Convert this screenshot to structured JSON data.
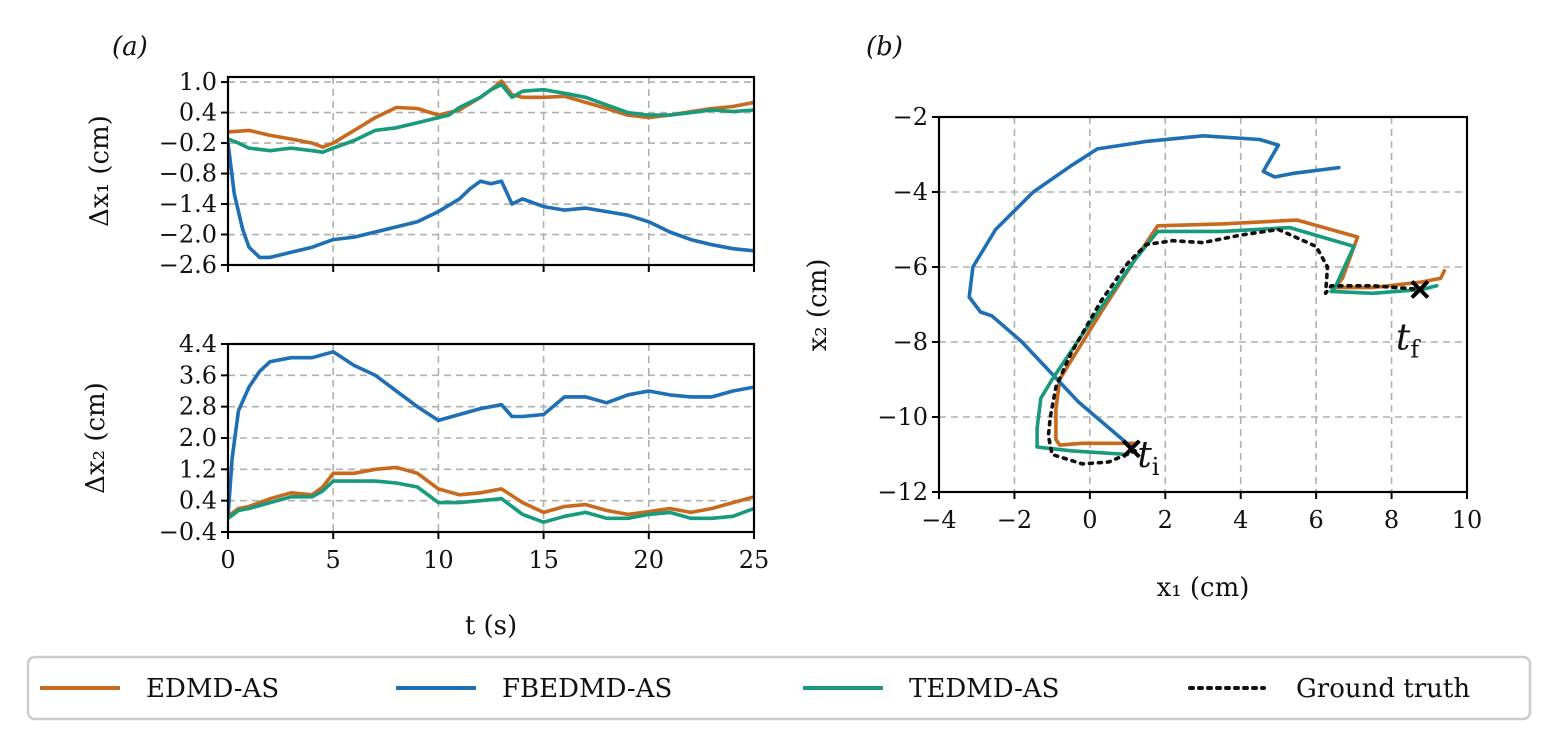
{
  "chart_data": [
    {
      "type": "line",
      "panel_label": "(a)",
      "ylabel": "Δx₁ (cm)",
      "xlabel": "",
      "xlim": [
        0,
        25
      ],
      "ylim": [
        -2.6,
        1.1
      ],
      "yticks": [
        "1.0",
        "0.4",
        "−0.2",
        "−0.8",
        "−1.4",
        "−2.0",
        "−2.6"
      ],
      "ytick_values": [
        1.0,
        0.4,
        -0.2,
        -0.8,
        -1.4,
        -2.0,
        -2.6
      ],
      "xticks": [
        "0",
        "5",
        "10",
        "15",
        "20",
        "25"
      ],
      "xtick_values": [
        0,
        5,
        10,
        15,
        20,
        25
      ],
      "grid": true,
      "series": [
        {
          "name": "EDMD-AS",
          "color": "#c86a1e",
          "style": "solid",
          "x": [
            0,
            1,
            2,
            3,
            4,
            4.5,
            5,
            6,
            7,
            8,
            9,
            10,
            11,
            12,
            12.5,
            13,
            13.5,
            14,
            15,
            16,
            17,
            18,
            19,
            20,
            21,
            22,
            23,
            24,
            25
          ],
          "y": [
            0.02,
            0.05,
            -0.05,
            -0.12,
            -0.2,
            -0.28,
            -0.2,
            0.05,
            0.3,
            0.5,
            0.48,
            0.35,
            0.45,
            0.7,
            0.85,
            1.02,
            0.75,
            0.7,
            0.7,
            0.72,
            0.6,
            0.48,
            0.35,
            0.3,
            0.35,
            0.42,
            0.48,
            0.52,
            0.6
          ]
        },
        {
          "name": "FBEDMD-AS",
          "color": "#1f6fb4",
          "style": "solid",
          "x": [
            0,
            0.3,
            0.7,
            1,
            1.5,
            2,
            3,
            4,
            5,
            6,
            7,
            8,
            9,
            10,
            11,
            11.5,
            12,
            12.5,
            13,
            13.5,
            14,
            15,
            16,
            17,
            18,
            19,
            20,
            21,
            22,
            23,
            24,
            25
          ],
          "y": [
            -0.2,
            -1.2,
            -1.9,
            -2.25,
            -2.45,
            -2.45,
            -2.35,
            -2.25,
            -2.1,
            -2.05,
            -1.95,
            -1.85,
            -1.75,
            -1.55,
            -1.3,
            -1.1,
            -0.95,
            -1.0,
            -0.95,
            -1.4,
            -1.3,
            -1.45,
            -1.52,
            -1.48,
            -1.55,
            -1.62,
            -1.75,
            -1.95,
            -2.1,
            -2.2,
            -2.28,
            -2.32
          ]
        },
        {
          "name": "TEDMD-AS",
          "color": "#189a7d",
          "style": "solid",
          "x": [
            0,
            0.5,
            1,
            2,
            3,
            4,
            4.5,
            5,
            6,
            7,
            8,
            9,
            10,
            10.5,
            11,
            12,
            12.5,
            13,
            13.5,
            14,
            15,
            16,
            17,
            18,
            19,
            20,
            21,
            22,
            23,
            24,
            25
          ],
          "y": [
            -0.12,
            -0.2,
            -0.3,
            -0.35,
            -0.3,
            -0.35,
            -0.38,
            -0.3,
            -0.15,
            0.05,
            0.1,
            0.2,
            0.3,
            0.35,
            0.5,
            0.7,
            0.85,
            0.95,
            0.7,
            0.82,
            0.85,
            0.78,
            0.7,
            0.55,
            0.4,
            0.35,
            0.35,
            0.4,
            0.45,
            0.42,
            0.45
          ]
        }
      ]
    },
    {
      "type": "line",
      "panel_label": "",
      "ylabel": "Δx₂ (cm)",
      "xlabel": "t (s)",
      "xlim": [
        0,
        25
      ],
      "ylim": [
        -0.4,
        4.4
      ],
      "yticks": [
        "4.4",
        "3.6",
        "2.8",
        "2.0",
        "1.2",
        "0.4",
        "−0.4"
      ],
      "ytick_values": [
        4.4,
        3.6,
        2.8,
        2.0,
        1.2,
        0.4,
        -0.4
      ],
      "xticks": [
        "0",
        "5",
        "10",
        "15",
        "20",
        "25"
      ],
      "xtick_values": [
        0,
        5,
        10,
        15,
        20,
        25
      ],
      "grid": true,
      "series": [
        {
          "name": "EDMD-AS",
          "color": "#c86a1e",
          "style": "solid",
          "x": [
            0,
            0.5,
            1,
            2,
            3,
            4,
            4.5,
            5,
            6,
            7,
            8,
            9,
            10,
            11,
            12,
            13,
            14,
            15,
            16,
            17,
            18,
            19,
            20,
            21,
            22,
            23,
            24,
            25
          ],
          "y": [
            0.0,
            0.2,
            0.25,
            0.45,
            0.6,
            0.55,
            0.75,
            1.1,
            1.1,
            1.2,
            1.25,
            1.1,
            0.7,
            0.55,
            0.6,
            0.7,
            0.35,
            0.1,
            0.25,
            0.3,
            0.15,
            0.05,
            0.12,
            0.2,
            0.1,
            0.2,
            0.35,
            0.5
          ]
        },
        {
          "name": "FBEDMD-AS",
          "color": "#1f6fb4",
          "style": "solid",
          "x": [
            0,
            0.2,
            0.5,
            1,
            1.5,
            2,
            3,
            4,
            5,
            6,
            7,
            8,
            9,
            10,
            11,
            12,
            13,
            13.5,
            14,
            15,
            16,
            17,
            18,
            19,
            20,
            21,
            22,
            23,
            24,
            25
          ],
          "y": [
            0.0,
            1.5,
            2.7,
            3.3,
            3.7,
            3.95,
            4.05,
            4.05,
            4.2,
            3.85,
            3.6,
            3.2,
            2.8,
            2.45,
            2.6,
            2.75,
            2.85,
            2.55,
            2.55,
            2.6,
            3.05,
            3.05,
            2.9,
            3.1,
            3.2,
            3.1,
            3.05,
            3.05,
            3.2,
            3.3
          ]
        },
        {
          "name": "TEDMD-AS",
          "color": "#189a7d",
          "style": "solid",
          "x": [
            0,
            0.5,
            1,
            2,
            3,
            4,
            4.5,
            5,
            6,
            7,
            8,
            9,
            10,
            11,
            12,
            13,
            14,
            15,
            16,
            17,
            18,
            19,
            20,
            21,
            22,
            23,
            24,
            25
          ],
          "y": [
            -0.05,
            0.15,
            0.2,
            0.35,
            0.5,
            0.5,
            0.65,
            0.9,
            0.9,
            0.9,
            0.85,
            0.75,
            0.35,
            0.35,
            0.4,
            0.45,
            0.05,
            -0.15,
            0.0,
            0.1,
            -0.05,
            -0.05,
            0.05,
            0.1,
            -0.05,
            -0.05,
            0.0,
            0.2
          ]
        }
      ]
    },
    {
      "type": "line",
      "panel_label": "(b)",
      "ylabel": "x₂ (cm)",
      "xlabel": "x₁ (cm)",
      "xlim": [
        -4,
        10
      ],
      "ylim": [
        -12,
        -2
      ],
      "xticks": [
        "−4",
        "−2",
        "0",
        "2",
        "4",
        "6",
        "8",
        "10"
      ],
      "xtick_values": [
        -4,
        -2,
        0,
        2,
        4,
        6,
        8,
        10
      ],
      "yticks": [
        "−2",
        "−4",
        "−6",
        "−8",
        "−10",
        "−12"
      ],
      "ytick_values": [
        -2,
        -4,
        -6,
        -8,
        -10,
        -12
      ],
      "grid": true,
      "series": [
        {
          "name": "EDMD-AS",
          "color": "#c86a1e",
          "style": "solid",
          "x": [
            1.2,
            -0.2,
            -0.8,
            -0.9,
            -0.9,
            -0.8,
            -0.5,
            0.3,
            1.2,
            1.8,
            3.5,
            5.5,
            7.1,
            6.7,
            6.5,
            7.5,
            8.8,
            9.3,
            9.4
          ],
          "y": [
            -10.7,
            -10.7,
            -10.75,
            -10.6,
            -9.8,
            -9.0,
            -8.5,
            -7.2,
            -5.8,
            -4.9,
            -4.85,
            -4.75,
            -5.2,
            -6.3,
            -6.55,
            -6.55,
            -6.4,
            -6.3,
            -6.1
          ]
        },
        {
          "name": "FBEDMD-AS",
          "color": "#1f6fb4",
          "style": "solid",
          "x": [
            1.1,
            -0.3,
            -1.8,
            -2.6,
            -2.9,
            -3.2,
            -3.1,
            -2.5,
            -1.5,
            -0.5,
            0.2,
            1.5,
            3.0,
            4.5,
            5.0,
            4.6,
            4.9,
            5.4,
            6.6
          ],
          "y": [
            -10.8,
            -9.6,
            -8.0,
            -7.3,
            -7.2,
            -6.8,
            -6.0,
            -5.0,
            -4.0,
            -3.3,
            -2.85,
            -2.65,
            -2.5,
            -2.6,
            -2.75,
            -3.45,
            -3.6,
            -3.5,
            -3.35
          ]
        },
        {
          "name": "TEDMD-AS",
          "color": "#189a7d",
          "style": "solid",
          "x": [
            1.0,
            -0.5,
            -1.4,
            -1.4,
            -1.3,
            -1.0,
            0.0,
            1.2,
            1.8,
            3.5,
            5.3,
            7.0,
            6.5,
            6.4,
            7.5,
            8.8,
            9.2
          ],
          "y": [
            -11.0,
            -10.9,
            -10.8,
            -10.3,
            -9.5,
            -9.0,
            -7.5,
            -5.8,
            -5.05,
            -5.05,
            -4.95,
            -5.45,
            -6.55,
            -6.65,
            -6.7,
            -6.6,
            -6.5
          ]
        },
        {
          "name": "Ground truth",
          "color": "#111111",
          "style": "dotted",
          "x": [
            1.2,
            0.5,
            -0.2,
            -1.0,
            -1.1,
            -1.05,
            -0.9,
            -0.5,
            0.3,
            1.0,
            1.5,
            2.2,
            3.0,
            4.0,
            5.0,
            6.0,
            6.3,
            6.25,
            6.4,
            7.5,
            8.8
          ],
          "y": [
            -10.9,
            -11.2,
            -11.25,
            -11.0,
            -10.5,
            -10.0,
            -9.2,
            -8.3,
            -6.9,
            -5.9,
            -5.4,
            -5.3,
            -5.35,
            -5.15,
            -5.0,
            -5.45,
            -6.0,
            -6.7,
            -6.5,
            -6.5,
            -6.6
          ]
        }
      ],
      "markers": [
        {
          "name": "start",
          "x": 1.1,
          "y": -10.85,
          "label": "t",
          "sub": "i"
        },
        {
          "name": "end",
          "x": 8.75,
          "y": -6.6,
          "label": "t",
          "sub": "f"
        }
      ]
    }
  ],
  "legend": {
    "entries": [
      {
        "label": "EDMD-AS",
        "color": "#c86a1e",
        "style": "solid"
      },
      {
        "label": "FBEDMD-AS",
        "color": "#1f6fb4",
        "style": "solid"
      },
      {
        "label": "TEDMD-AS",
        "color": "#189a7d",
        "style": "solid"
      },
      {
        "label": "Ground truth",
        "color": "#111111",
        "style": "dotted"
      }
    ]
  }
}
